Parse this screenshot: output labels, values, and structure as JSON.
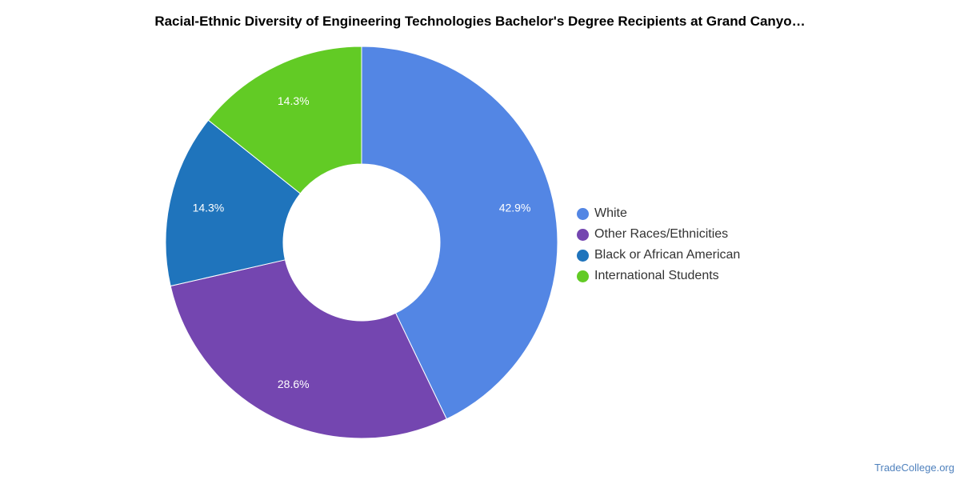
{
  "chart_data": {
    "type": "pie",
    "donut": true,
    "title": "Racial-Ethnic Diversity of Engineering Technologies Bachelor's Degree Recipients at Grand Canyo…",
    "categories": [
      "White",
      "Other Races/Ethnicities",
      "Black or African American",
      "International Students"
    ],
    "values": [
      42.9,
      28.6,
      14.3,
      14.3
    ],
    "data_labels": [
      "42.9%",
      "28.6%",
      "14.3%",
      "14.3%"
    ],
    "colors": [
      "#5386e4",
      "#7446b0",
      "#1f74bc",
      "#62cb25"
    ],
    "legend_position": "right"
  },
  "watermark": "TradeCollege.org"
}
